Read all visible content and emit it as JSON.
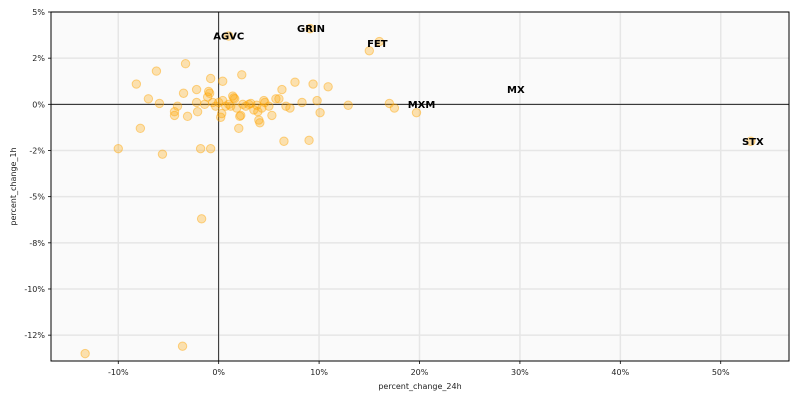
{
  "chart_data": {
    "type": "scatter",
    "xlabel": "percent_change_24h",
    "ylabel": "percent_change_1h",
    "xlim": [
      -16.7,
      56.8
    ],
    "ylim": [
      -13.9,
      5.0
    ],
    "grid": true,
    "reference_lines": {
      "x": 0,
      "y": 0
    },
    "marker_color": "#ffa500",
    "x_ticks": [
      {
        "value": -10,
        "label": "-10%"
      },
      {
        "value": 0,
        "label": "0%"
      },
      {
        "value": 10,
        "label": "10%"
      },
      {
        "value": 20,
        "label": "20%"
      },
      {
        "value": 30,
        "label": "30%"
      },
      {
        "value": 40,
        "label": "40%"
      },
      {
        "value": 50,
        "label": "50%"
      }
    ],
    "y_ticks": [
      {
        "value": 5,
        "label": "5%"
      },
      {
        "value": 2.5,
        "label": "2%"
      },
      {
        "value": 0,
        "label": "0%"
      },
      {
        "value": -2.5,
        "label": "-2%"
      },
      {
        "value": -5,
        "label": "-5%"
      },
      {
        "value": -7.5,
        "label": "-8%"
      },
      {
        "value": -10,
        "label": "-10%"
      },
      {
        "value": -12.5,
        "label": "-12%"
      }
    ],
    "annotations": [
      {
        "label": "GRIN",
        "x": 9.2,
        "y": 4.1
      },
      {
        "label": "AGVC",
        "x": 1.0,
        "y": 3.7
      },
      {
        "label": "FET",
        "x": 15.8,
        "y": 3.3
      },
      {
        "label": "MX",
        "x": 29.6,
        "y": 0.8
      },
      {
        "label": "MXM",
        "x": 20.2,
        "y": 0.0
      },
      {
        "label": "STX",
        "x": 53.2,
        "y": -2.0
      }
    ],
    "points": [
      [
        -13.3,
        -13.5
      ],
      [
        -3.6,
        -13.1
      ],
      [
        -1.7,
        -6.2
      ],
      [
        -10.0,
        -2.4
      ],
      [
        -5.6,
        -2.7
      ],
      [
        -7.8,
        -1.3
      ],
      [
        -1.8,
        -2.4
      ],
      [
        -0.8,
        -2.4
      ],
      [
        -8.2,
        1.1
      ],
      [
        -6.2,
        1.8
      ],
      [
        -3.3,
        2.2
      ],
      [
        -7.0,
        0.3
      ],
      [
        -5.9,
        0.05
      ],
      [
        -4.1,
        -0.1
      ],
      [
        -4.4,
        -0.4
      ],
      [
        -4.4,
        -0.6
      ],
      [
        -3.1,
        -0.65
      ],
      [
        -3.5,
        0.6
      ],
      [
        -2.2,
        0.8
      ],
      [
        -2.2,
        0.1
      ],
      [
        -2.1,
        -0.4
      ],
      [
        -1.4,
        0.0
      ],
      [
        -1.1,
        0.4
      ],
      [
        -1.0,
        0.7
      ],
      [
        -0.9,
        0.6
      ],
      [
        -0.8,
        1.4
      ],
      [
        -0.6,
        0.1
      ],
      [
        -0.3,
        -0.1
      ],
      [
        0.0,
        0.1
      ],
      [
        0.2,
        -0.7
      ],
      [
        0.3,
        -0.5
      ],
      [
        0.4,
        0.2
      ],
      [
        0.4,
        1.25
      ],
      [
        0.7,
        -0.1
      ],
      [
        1.0,
        0.0
      ],
      [
        1.2,
        -0.1
      ],
      [
        1.4,
        0.45
      ],
      [
        1.5,
        0.35
      ],
      [
        1.6,
        0.3
      ],
      [
        1.8,
        -0.2
      ],
      [
        2.0,
        -1.3
      ],
      [
        2.1,
        -0.65
      ],
      [
        2.2,
        -0.6
      ],
      [
        2.3,
        1.6
      ],
      [
        2.4,
        0.0
      ],
      [
        2.7,
        -0.1
      ],
      [
        3.0,
        0.0
      ],
      [
        3.2,
        0.05
      ],
      [
        3.5,
        -0.3
      ],
      [
        3.8,
        -0.05
      ],
      [
        3.9,
        -0.4
      ],
      [
        4.0,
        -0.85
      ],
      [
        4.1,
        -1.0
      ],
      [
        4.3,
        -0.2
      ],
      [
        4.5,
        0.2
      ],
      [
        4.6,
        0.1
      ],
      [
        5.0,
        -0.1
      ],
      [
        5.3,
        -0.6
      ],
      [
        5.7,
        0.3
      ],
      [
        6.0,
        0.3
      ],
      [
        6.3,
        0.8
      ],
      [
        6.5,
        -2.0
      ],
      [
        6.7,
        -0.1
      ],
      [
        7.1,
        -0.2
      ],
      [
        7.6,
        1.2
      ],
      [
        8.3,
        0.1
      ],
      [
        9.0,
        -1.95
      ],
      [
        9.4,
        1.1
      ],
      [
        9.8,
        0.2
      ],
      [
        10.1,
        -0.45
      ],
      [
        10.9,
        0.95
      ],
      [
        12.9,
        -0.05
      ],
      [
        15.0,
        2.9
      ],
      [
        16.0,
        3.4
      ],
      [
        17.0,
        0.05
      ],
      [
        17.5,
        -0.2
      ],
      [
        19.7,
        -0.45
      ],
      [
        9.1,
        4.1
      ],
      [
        1.0,
        3.7
      ],
      [
        53.0,
        -2.0
      ]
    ]
  }
}
